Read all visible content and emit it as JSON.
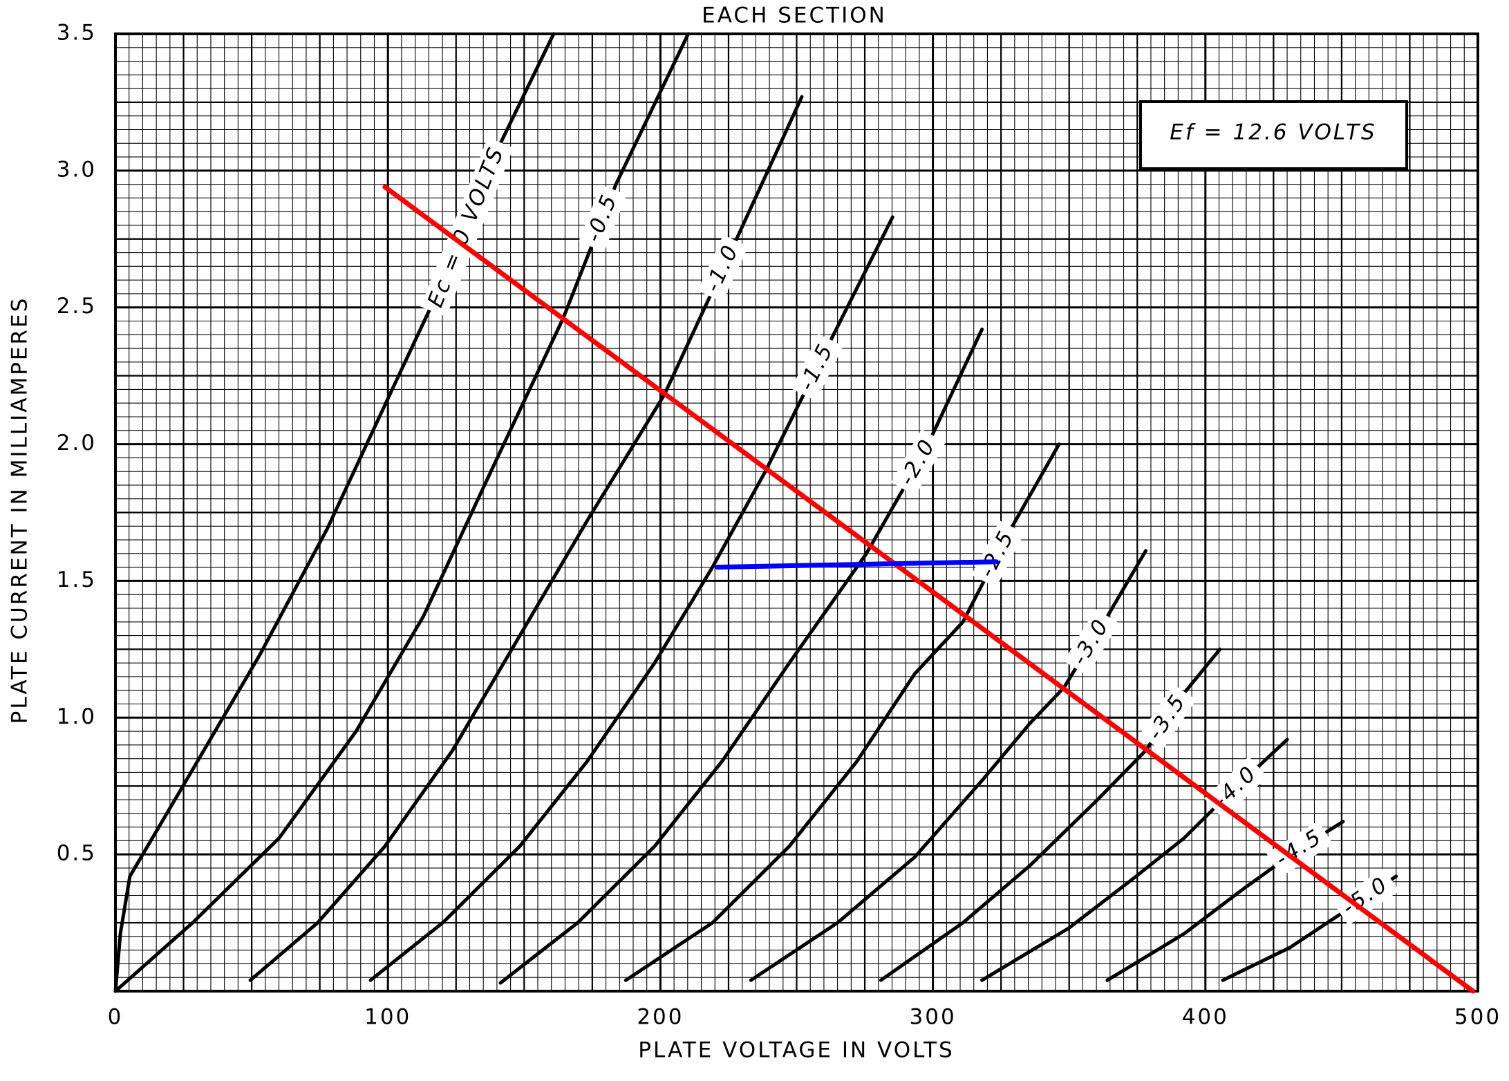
{
  "chart_data": {
    "type": "line",
    "title": "EACH SECTION",
    "x_label": "PLATE VOLTAGE IN VOLTS",
    "y_label": "PLATE CURRENT IN MILLIAMPERES",
    "annotation": "Ef = 12.6 VOLTS",
    "xlim": [
      0,
      500
    ],
    "ylim": [
      0,
      3.5
    ],
    "xticks": [
      0,
      100,
      200,
      300,
      400,
      500
    ],
    "yticks": [
      0.5,
      {
        "value": 1,
        "label": "1.0"
      },
      1.5,
      {
        "value": 2,
        "label": "2.0"
      },
      2.5,
      {
        "value": 3,
        "label": "3.0"
      },
      3.5
    ],
    "grid": true,
    "series": [
      {
        "name": "Ec = 0 VOLTS",
        "color": "#000000",
        "x": [
          0,
          1.8,
          5.3,
          28.3,
          53,
          77.7,
          102.5,
          126.5,
          141.3,
          160.8
        ],
        "values": [
          0,
          0.21,
          0.42,
          0.81,
          1.23,
          1.69,
          2.22,
          2.73,
          3.1,
          3.5
        ]
      },
      {
        "name": "-0.5",
        "color": "#000000",
        "x": [
          0,
          28.3,
          60.1,
          88.3,
          113,
          137.8,
          164.3,
          183.7,
          210.2
        ],
        "values": [
          0,
          0.25,
          0.56,
          0.95,
          1.37,
          1.9,
          2.46,
          2.95,
          3.5
        ]
      },
      {
        "name": "-1.0",
        "color": "#000000",
        "x": [
          49.5,
          74.2,
          98.9,
          123.7,
          148.4,
          173.1,
          201.4,
          226.1,
          251.9
        ],
        "values": [
          0.04,
          0.25,
          0.53,
          0.88,
          1.3,
          1.72,
          2.18,
          2.71,
          3.27
        ]
      },
      {
        "name": "-1.5",
        "color": "#000000",
        "x": [
          93.6,
          120.1,
          148.4,
          173.1,
          197.9,
          219.1,
          238.5,
          261.5,
          285.2
        ],
        "values": [
          0.04,
          0.25,
          0.53,
          0.84,
          1.2,
          1.55,
          1.9,
          2.36,
          2.83
        ]
      },
      {
        "name": "-2.0",
        "color": "#000000",
        "x": [
          141.3,
          169.6,
          197.9,
          222.6,
          247.3,
          275.6,
          296.8,
          318
        ],
        "values": [
          0.03,
          0.25,
          0.53,
          0.84,
          1.2,
          1.6,
          1.97,
          2.42
        ]
      },
      {
        "name": "-2.5",
        "color": "#000000",
        "x": [
          187.3,
          219.1,
          247.3,
          272.1,
          293.3,
          311,
          328.6,
          346.3
        ],
        "values": [
          0.04,
          0.25,
          0.53,
          0.84,
          1.16,
          1.35,
          1.69,
          2.0
        ]
      },
      {
        "name": "-3.0",
        "color": "#000000",
        "x": [
          233.2,
          265,
          293.3,
          318,
          335.7,
          348.1,
          364,
          378.1
        ],
        "values": [
          0.04,
          0.25,
          0.49,
          0.77,
          0.98,
          1.11,
          1.37,
          1.61
        ]
      },
      {
        "name": "-3.5",
        "color": "#000000",
        "x": [
          280.9,
          311,
          335.7,
          360.4,
          378.1,
          392.2,
          405.3
        ],
        "values": [
          0.04,
          0.25,
          0.46,
          0.7,
          0.88,
          1.09,
          1.25
        ]
      },
      {
        "name": "-4.0",
        "color": "#000000",
        "x": [
          318,
          349.8,
          374.6,
          392.2,
          406.4,
          430
        ],
        "values": [
          0.04,
          0.23,
          0.42,
          0.56,
          0.7,
          0.92
        ]
      },
      {
        "name": "-4.5",
        "color": "#000000",
        "x": [
          364,
          392.2,
          413.4,
          432.9,
          450.5
        ],
        "values": [
          0.04,
          0.21,
          0.37,
          0.51,
          0.62
        ]
      },
      {
        "name": "-5.0",
        "color": "#000000",
        "x": [
          406.4,
          431.1,
          452.3,
          470
        ],
        "values": [
          0.04,
          0.16,
          0.3,
          0.42
        ]
      },
      {
        "color": "#ff0000",
        "x": [
          98.9,
          498.2
        ],
        "values": [
          2.94,
          0
        ]
      },
      {
        "color": "#0000ff",
        "x": [
          220.8,
          323.3
        ],
        "values": [
          1.55,
          1.57
        ]
      }
    ]
  }
}
